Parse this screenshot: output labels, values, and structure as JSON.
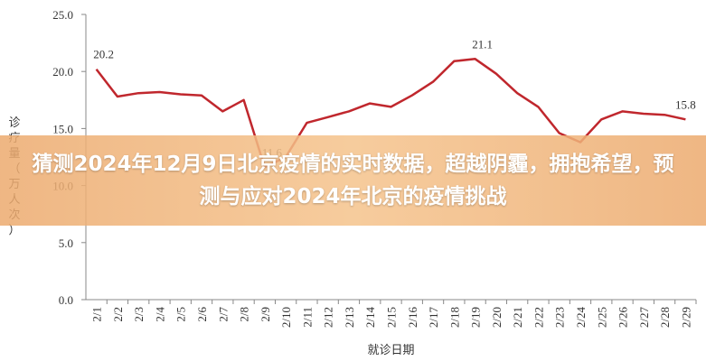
{
  "chart_data": {
    "type": "line",
    "title": "猜测2024年12月9日北京疫情的实时数据，超越阴霾，拥抱希望，预测与应对2024年北京的疫情挑战",
    "ylabel": "诊疗量（万人次）",
    "xlabel": "就诊日期",
    "categories": [
      "2/1",
      "2/2",
      "2/3",
      "2/4",
      "2/5",
      "2/6",
      "2/7",
      "2/8",
      "2/9",
      "2/10",
      "2/11",
      "2/12",
      "2/13",
      "2/14",
      "2/15",
      "2/16",
      "2/17",
      "2/18",
      "2/19",
      "2/20",
      "2/21",
      "2/22",
      "2/23",
      "2/24",
      "2/25",
      "2/26",
      "2/27",
      "2/28",
      "2/29"
    ],
    "series": [
      {
        "name": "诊疗量",
        "color": "#c0272d",
        "values": [
          20.2,
          17.8,
          18.1,
          18.2,
          18.0,
          17.9,
          16.5,
          17.5,
          11.6,
          12.5,
          15.5,
          16.0,
          16.5,
          17.2,
          16.9,
          17.9,
          19.1,
          20.9,
          21.1,
          19.8,
          18.1,
          16.9,
          14.6,
          13.8,
          15.8,
          16.5,
          16.3,
          16.2,
          15.8
        ],
        "value_labels": [
          "20.2",
          null,
          null,
          null,
          null,
          null,
          null,
          null,
          "11.6",
          null,
          null,
          null,
          null,
          null,
          null,
          null,
          null,
          null,
          "21.1",
          null,
          null,
          null,
          null,
          null,
          null,
          null,
          null,
          null,
          "15.8"
        ]
      }
    ],
    "ylim": [
      0,
      25
    ],
    "yticks": [
      {
        "value": 0,
        "label": "0.0"
      },
      {
        "value": 5,
        "label": "5.0"
      },
      {
        "value": 10,
        "label": "10.0"
      },
      {
        "value": 15,
        "label": "15.0"
      },
      {
        "value": 20,
        "label": "20.0"
      },
      {
        "value": 25,
        "label": "25.0"
      }
    ]
  }
}
